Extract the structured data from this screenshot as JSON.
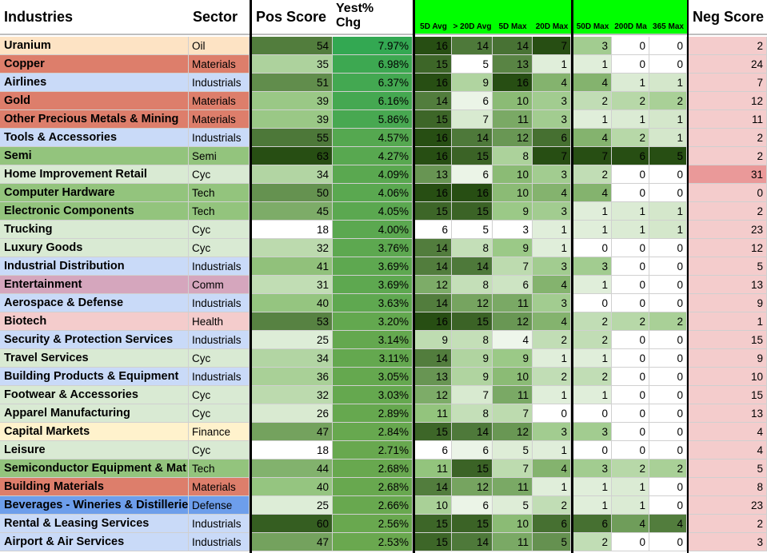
{
  "headers": {
    "industries": "Industries",
    "sector": "Sector",
    "pos_score": "Pos Score",
    "yest_chg_line1": "Yest%",
    "yest_chg_line2": "Chg",
    "avg5": "5D Avg",
    "avg20": "> 20D Avg",
    "max5": "5D Max",
    "max20": "20D Max",
    "max50": "50D Max",
    "max200": "200D Ma",
    "max365": "365 Max",
    "neg_score": "Neg Score"
  },
  "sector_colors": {
    "Oil": "#fde3c4",
    "Materials": "#dd7e6b",
    "Industrials": "#c9daf8",
    "Semi": "#93c47d",
    "Cyc": "#d9ead3",
    "Tech": "#93c47d",
    "Comm": "#d5a6bd",
    "Health": "#f4cccc",
    "Finance": "#fff2cc",
    "Defense": "#6d9eeb"
  },
  "rows": [
    {
      "industry": "Uranium",
      "sector": "Oil",
      "pos": "54",
      "chg": "7.97%",
      "avg5": "16",
      "avg20": "14",
      "max5": "14",
      "max20": "7",
      "max50": "3",
      "max200": "0",
      "max365": "0",
      "neg": "2"
    },
    {
      "industry": "Copper",
      "sector": "Materials",
      "pos": "35",
      "chg": "6.98%",
      "avg5": "15",
      "avg20": "5",
      "max5": "13",
      "max20": "1",
      "max50": "1",
      "max200": "0",
      "max365": "0",
      "neg": "24"
    },
    {
      "industry": "Airlines",
      "sector": "Industrials",
      "pos": "51",
      "chg": "6.37%",
      "avg5": "16",
      "avg20": "9",
      "max5": "16",
      "max20": "4",
      "max50": "4",
      "max200": "1",
      "max365": "1",
      "neg": "7"
    },
    {
      "industry": "Gold",
      "sector": "Materials",
      "pos": "39",
      "chg": "6.16%",
      "avg5": "14",
      "avg20": "6",
      "max5": "10",
      "max20": "3",
      "max50": "2",
      "max200": "2",
      "max365": "2",
      "neg": "12"
    },
    {
      "industry": "Other Precious Metals & Mining",
      "sector": "Materials",
      "pos": "39",
      "chg": "5.86%",
      "avg5": "15",
      "avg20": "7",
      "max5": "11",
      "max20": "3",
      "max50": "1",
      "max200": "1",
      "max365": "1",
      "neg": "11"
    },
    {
      "industry": "Tools & Accessories",
      "sector": "Industrials",
      "pos": "55",
      "chg": "4.57%",
      "avg5": "16",
      "avg20": "14",
      "max5": "12",
      "max20": "6",
      "max50": "4",
      "max200": "2",
      "max365": "1",
      "neg": "2"
    },
    {
      "industry": "Semi",
      "sector": "Semi",
      "pos": "63",
      "chg": "4.27%",
      "avg5": "16",
      "avg20": "15",
      "max5": "8",
      "max20": "7",
      "max50": "7",
      "max200": "6",
      "max365": "5",
      "neg": "2"
    },
    {
      "industry": "Home Improvement Retail",
      "sector": "Cyc",
      "pos": "34",
      "chg": "4.09%",
      "avg5": "13",
      "avg20": "6",
      "max5": "10",
      "max20": "3",
      "max50": "2",
      "max200": "0",
      "max365": "0",
      "neg": "31"
    },
    {
      "industry": "Computer Hardware",
      "sector": "Tech",
      "pos": "50",
      "chg": "4.06%",
      "avg5": "16",
      "avg20": "16",
      "max5": "10",
      "max20": "4",
      "max50": "4",
      "max200": "0",
      "max365": "0",
      "neg": "0"
    },
    {
      "industry": "Electronic Components",
      "sector": "Tech",
      "pos": "45",
      "chg": "4.05%",
      "avg5": "15",
      "avg20": "15",
      "max5": "9",
      "max20": "3",
      "max50": "1",
      "max200": "1",
      "max365": "1",
      "neg": "2"
    },
    {
      "industry": "Trucking",
      "sector": "Cyc",
      "pos": "18",
      "chg": "4.00%",
      "avg5": "6",
      "avg20": "5",
      "max5": "3",
      "max20": "1",
      "max50": "1",
      "max200": "1",
      "max365": "1",
      "neg": "23"
    },
    {
      "industry": "Luxury Goods",
      "sector": "Cyc",
      "pos": "32",
      "chg": "3.76%",
      "avg5": "14",
      "avg20": "8",
      "max5": "9",
      "max20": "1",
      "max50": "0",
      "max200": "0",
      "max365": "0",
      "neg": "12"
    },
    {
      "industry": "Industrial Distribution",
      "sector": "Industrials",
      "pos": "41",
      "chg": "3.69%",
      "avg5": "14",
      "avg20": "14",
      "max5": "7",
      "max20": "3",
      "max50": "3",
      "max200": "0",
      "max365": "0",
      "neg": "5"
    },
    {
      "industry": "Entertainment",
      "sector": "Comm",
      "pos": "31",
      "chg": "3.69%",
      "avg5": "12",
      "avg20": "8",
      "max5": "6",
      "max20": "4",
      "max50": "1",
      "max200": "0",
      "max365": "0",
      "neg": "13"
    },
    {
      "industry": "Aerospace & Defense",
      "sector": "Industrials",
      "pos": "40",
      "chg": "3.63%",
      "avg5": "14",
      "avg20": "12",
      "max5": "11",
      "max20": "3",
      "max50": "0",
      "max200": "0",
      "max365": "0",
      "neg": "9"
    },
    {
      "industry": "Biotech",
      "sector": "Health",
      "pos": "53",
      "chg": "3.20%",
      "avg5": "16",
      "avg20": "15",
      "max5": "12",
      "max20": "4",
      "max50": "2",
      "max200": "2",
      "max365": "2",
      "neg": "1"
    },
    {
      "industry": "Security & Protection Services",
      "sector": "Industrials",
      "pos": "25",
      "chg": "3.14%",
      "avg5": "9",
      "avg20": "8",
      "max5": "4",
      "max20": "2",
      "max50": "2",
      "max200": "0",
      "max365": "0",
      "neg": "15"
    },
    {
      "industry": "Travel Services",
      "sector": "Cyc",
      "pos": "34",
      "chg": "3.11%",
      "avg5": "14",
      "avg20": "9",
      "max5": "9",
      "max20": "1",
      "max50": "1",
      "max200": "0",
      "max365": "0",
      "neg": "9"
    },
    {
      "industry": "Building Products & Equipment",
      "sector": "Industrials",
      "pos": "36",
      "chg": "3.05%",
      "avg5": "13",
      "avg20": "9",
      "max5": "10",
      "max20": "2",
      "max50": "2",
      "max200": "0",
      "max365": "0",
      "neg": "10"
    },
    {
      "industry": "Footwear & Accessories",
      "sector": "Cyc",
      "pos": "32",
      "chg": "3.03%",
      "avg5": "12",
      "avg20": "7",
      "max5": "11",
      "max20": "1",
      "max50": "1",
      "max200": "0",
      "max365": "0",
      "neg": "15"
    },
    {
      "industry": "Apparel Manufacturing",
      "sector": "Cyc",
      "pos": "26",
      "chg": "2.89%",
      "avg5": "11",
      "avg20": "8",
      "max5": "7",
      "max20": "0",
      "max50": "0",
      "max200": "0",
      "max365": "0",
      "neg": "13"
    },
    {
      "industry": "Capital Markets",
      "sector": "Finance",
      "pos": "47",
      "chg": "2.84%",
      "avg5": "15",
      "avg20": "14",
      "max5": "12",
      "max20": "3",
      "max50": "3",
      "max200": "0",
      "max365": "0",
      "neg": "4"
    },
    {
      "industry": "Leisure",
      "sector": "Cyc",
      "pos": "18",
      "chg": "2.71%",
      "avg5": "6",
      "avg20": "6",
      "max5": "5",
      "max20": "1",
      "max50": "0",
      "max200": "0",
      "max365": "0",
      "neg": "4"
    },
    {
      "industry": "Semiconductor Equipment & Mat",
      "sector": "Tech",
      "pos": "44",
      "chg": "2.68%",
      "avg5": "11",
      "avg20": "15",
      "max5": "7",
      "max20": "4",
      "max50": "3",
      "max200": "2",
      "max365": "2",
      "neg": "5"
    },
    {
      "industry": "Building Materials",
      "sector": "Materials",
      "pos": "40",
      "chg": "2.68%",
      "avg5": "14",
      "avg20": "12",
      "max5": "11",
      "max20": "1",
      "max50": "1",
      "max200": "1",
      "max365": "0",
      "neg": "8"
    },
    {
      "industry": "Beverages - Wineries & Distillerie",
      "sector": "Defense",
      "pos": "25",
      "chg": "2.66%",
      "avg5": "10",
      "avg20": "6",
      "max5": "5",
      "max20": "2",
      "max50": "1",
      "max200": "1",
      "max365": "0",
      "neg": "23"
    },
    {
      "industry": "Rental & Leasing Services",
      "sector": "Industrials",
      "pos": "60",
      "chg": "2.56%",
      "avg5": "15",
      "avg20": "15",
      "max5": "10",
      "max20": "6",
      "max50": "6",
      "max200": "4",
      "max365": "4",
      "neg": "2"
    },
    {
      "industry": "Airport & Air Services",
      "sector": "Industrials",
      "pos": "47",
      "chg": "2.53%",
      "avg5": "15",
      "avg20": "14",
      "max5": "11",
      "max20": "5",
      "max50": "2",
      "max200": "0",
      "max365": "0",
      "neg": "3"
    }
  ]
}
